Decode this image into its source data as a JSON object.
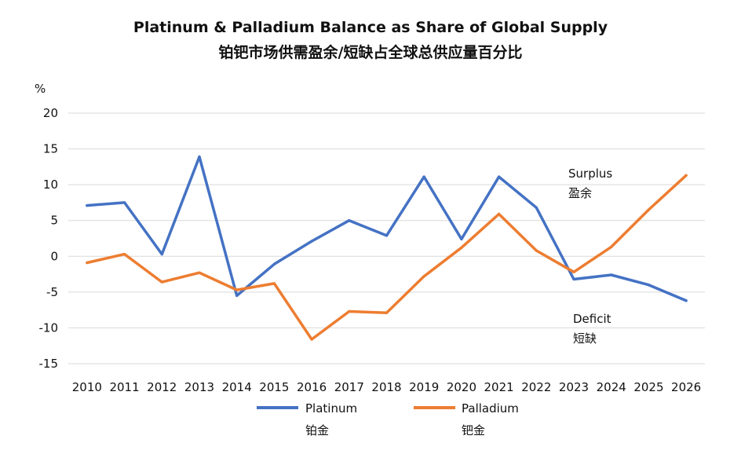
{
  "chart_data": {
    "type": "line",
    "title": "Platinum & Palladium Balance as Share of Global Supply",
    "subtitle": "铂钯市场供需盈余/短缺占全球总供应量百分比",
    "ylabel": "%",
    "xlabel": "",
    "ylim": [
      -15,
      20
    ],
    "yticks": [
      20,
      15,
      10,
      5,
      0,
      -5,
      -10,
      -15
    ],
    "categories": [
      "2010",
      "2011",
      "2012",
      "2013",
      "2014",
      "2015",
      "2016",
      "2017",
      "2018",
      "2019",
      "2020",
      "2021",
      "2022",
      "2023",
      "2024",
      "2025",
      "2026"
    ],
    "grid": true,
    "legend_position": "bottom",
    "series": [
      {
        "name": "Platinum",
        "name_cn": "铂金",
        "color": "#4472c4",
        "values": [
          7.1,
          7.5,
          0.3,
          13.9,
          -5.5,
          -1.1,
          2.1,
          5.0,
          2.9,
          11.1,
          2.4,
          11.1,
          6.8,
          -3.2,
          -2.6,
          -4.0,
          -6.2
        ]
      },
      {
        "name": "Palladium",
        "name_cn": "钯金",
        "color": "#ed7d31",
        "values": [
          -0.9,
          0.3,
          -3.6,
          -2.3,
          -4.7,
          -3.8,
          -11.6,
          -7.7,
          -7.9,
          -2.8,
          1.2,
          5.9,
          0.8,
          -2.2,
          1.3,
          6.5,
          11.3
        ]
      }
    ],
    "annotations": [
      {
        "en": "Surplus",
        "cn": "盈余"
      },
      {
        "en": "Deficit",
        "cn": "短缺"
      }
    ]
  }
}
